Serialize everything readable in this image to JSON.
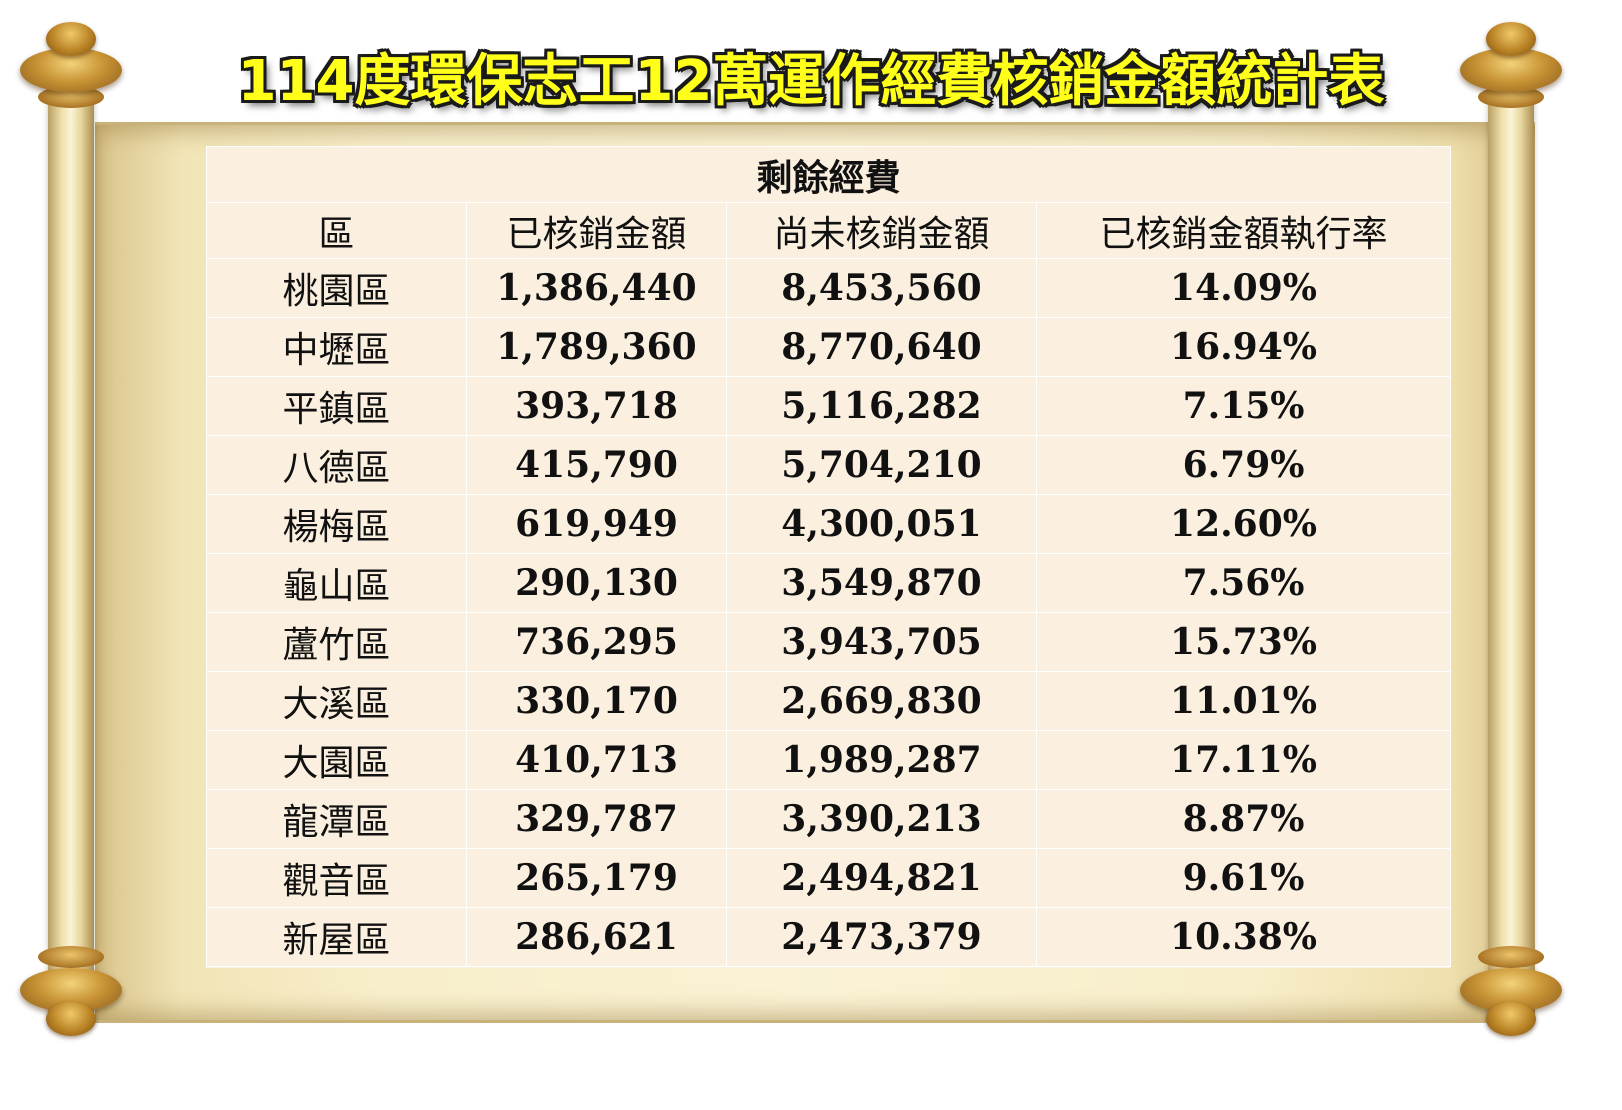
{
  "title": "114度環保志工12萬運作經費核銷金額統計表",
  "table": {
    "caption": "剩餘經費",
    "headers": [
      "區",
      "已核銷金額",
      "尚未核銷金額",
      "已核銷金額執行率"
    ],
    "rows": [
      {
        "district": "桃園區",
        "reimbursed": "1,386,440",
        "outstanding": "8,453,560",
        "rate": "14.09%"
      },
      {
        "district": "中壢區",
        "reimbursed": "1,789,360",
        "outstanding": "8,770,640",
        "rate": "16.94%"
      },
      {
        "district": "平鎮區",
        "reimbursed": "393,718",
        "outstanding": "5,116,282",
        "rate": "7.15%"
      },
      {
        "district": "八德區",
        "reimbursed": "415,790",
        "outstanding": "5,704,210",
        "rate": "6.79%"
      },
      {
        "district": "楊梅區",
        "reimbursed": "619,949",
        "outstanding": "4,300,051",
        "rate": "12.60%"
      },
      {
        "district": "龜山區",
        "reimbursed": "290,130",
        "outstanding": "3,549,870",
        "rate": "7.56%"
      },
      {
        "district": "蘆竹區",
        "reimbursed": "736,295",
        "outstanding": "3,943,705",
        "rate": "15.73%"
      },
      {
        "district": "大溪區",
        "reimbursed": "330,170",
        "outstanding": "2,669,830",
        "rate": "11.01%"
      },
      {
        "district": "大園區",
        "reimbursed": "410,713",
        "outstanding": "1,989,287",
        "rate": "17.11%"
      },
      {
        "district": "龍潭區",
        "reimbursed": "329,787",
        "outstanding": "3,390,213",
        "rate": "8.87%"
      },
      {
        "district": "觀音區",
        "reimbursed": "265,179",
        "outstanding": "2,494,821",
        "rate": "9.61%"
      },
      {
        "district": "新屋區",
        "reimbursed": "286,621",
        "outstanding": "2,473,379",
        "rate": "10.38%"
      }
    ]
  }
}
